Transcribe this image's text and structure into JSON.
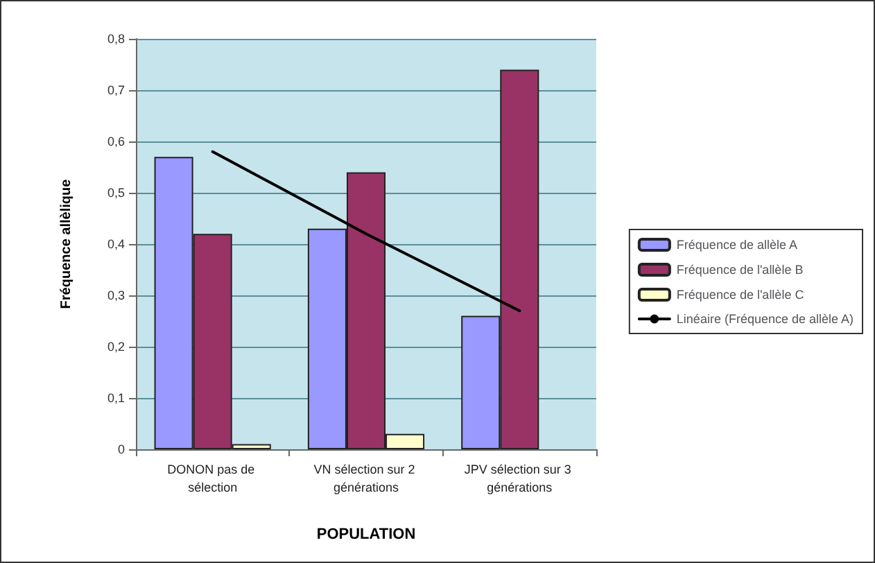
{
  "chart_data": {
    "type": "bar",
    "ylabel": "Fréquence allèlique",
    "xlabel": "POPULATION",
    "categories": [
      "DONON pas de sélection",
      "VN sélection sur 2 générations",
      "JPV sélection sur 3 générations"
    ],
    "series": [
      {
        "name": "Fréquence de allèle A",
        "color": "#9999ff",
        "values": [
          0.57,
          0.43,
          0.26
        ]
      },
      {
        "name": "Fréquence de l'allèle B",
        "color": "#993366",
        "values": [
          0.42,
          0.54,
          0.74
        ]
      },
      {
        "name": "Fréquence de l'allèle C",
        "color": "#ffffcc",
        "values": [
          0.01,
          0.03,
          null
        ]
      },
      {
        "name": "Linéaire (Fréquence de allèle A)",
        "type": "line",
        "color": "#000000",
        "values": [
          0.58,
          0.42,
          0.27
        ]
      }
    ],
    "ylim": [
      0,
      0.8
    ],
    "yticks": [
      0,
      {
        "value": 0.1,
        "label": "0,1"
      },
      {
        "value": 0.2,
        "label": "0,2"
      },
      {
        "value": 0.3,
        "label": "0,3"
      },
      {
        "value": 0.4,
        "label": "0,4"
      },
      {
        "value": 0.5,
        "label": "0,5"
      },
      {
        "value": 0.6,
        "label": "0,6"
      },
      {
        "value": 0.7,
        "label": "0,7"
      },
      {
        "value": 0.8,
        "label": "0,8"
      }
    ],
    "grid": "y",
    "legend": "right",
    "marker": "none"
  }
}
